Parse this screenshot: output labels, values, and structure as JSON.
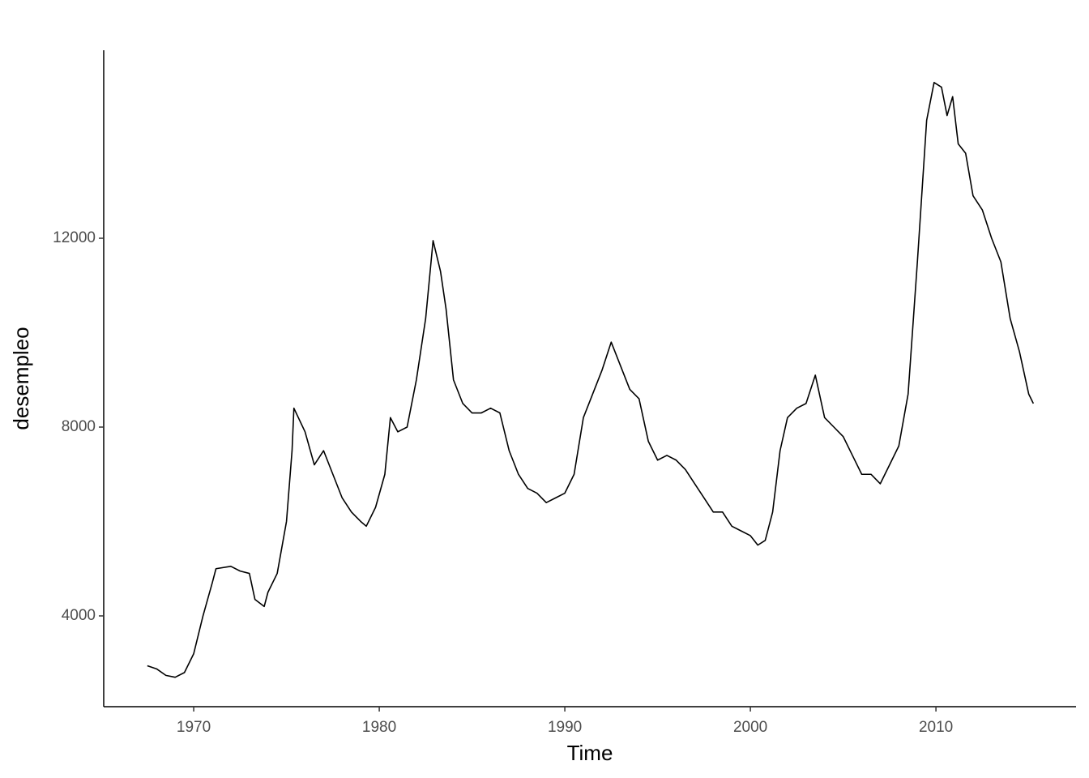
{
  "chart_data": {
    "type": "line",
    "x_label": "Time",
    "y_label": "desempleo",
    "x": [
      1967.5,
      1968.0,
      1968.5,
      1969.0,
      1969.5,
      1970.0,
      1970.5,
      1971.0,
      1971.2,
      1972.0,
      1972.5,
      1973.0,
      1973.3,
      1973.8,
      1974.0,
      1974.5,
      1975.0,
      1975.3,
      1975.4,
      1976.0,
      1976.5,
      1977.0,
      1977.5,
      1978.0,
      1978.5,
      1979.0,
      1979.3,
      1979.8,
      1980.3,
      1980.6,
      1981.0,
      1981.5,
      1982.0,
      1982.5,
      1982.9,
      1983.3,
      1983.6,
      1984.0,
      1984.5,
      1985.0,
      1985.5,
      1986.0,
      1986.5,
      1987.0,
      1987.5,
      1988.0,
      1988.5,
      1989.0,
      1989.5,
      1990.0,
      1990.5,
      1991.0,
      1991.5,
      1992.0,
      1992.5,
      1993.0,
      1993.5,
      1994.0,
      1994.5,
      1995.0,
      1995.5,
      1996.0,
      1996.5,
      1997.0,
      1997.5,
      1998.0,
      1998.5,
      1999.0,
      1999.5,
      2000.0,
      2000.4,
      2000.8,
      2001.2,
      2001.6,
      2002.0,
      2002.5,
      2003.0,
      2003.5,
      2004.0,
      2004.5,
      2005.0,
      2005.5,
      2006.0,
      2006.5,
      2007.0,
      2007.5,
      2008.0,
      2008.5,
      2009.0,
      2009.5,
      2009.9,
      2010.3,
      2010.6,
      2010.9,
      2011.2,
      2011.6,
      2012.0,
      2012.5,
      2013.0,
      2013.5,
      2014.0,
      2014.5,
      2015.0,
      2015.25
    ],
    "values": [
      2944,
      2878,
      2740,
      2700,
      2800,
      3200,
      4000,
      4700,
      5000,
      5050,
      4950,
      4900,
      4350,
      4200,
      4500,
      4900,
      6000,
      7500,
      8400,
      7900,
      7200,
      7500,
      7000,
      6500,
      6200,
      6000,
      5900,
      6300,
      7000,
      8200,
      7900,
      8000,
      9000,
      10300,
      11950,
      11300,
      10500,
      9000,
      8500,
      8300,
      8300,
      8400,
      8300,
      7500,
      7000,
      6700,
      6600,
      6400,
      6500,
      6600,
      7000,
      8200,
      8700,
      9200,
      9800,
      9300,
      8800,
      8600,
      7700,
      7300,
      7400,
      7300,
      7100,
      6800,
      6500,
      6200,
      6200,
      5900,
      5800,
      5700,
      5500,
      5600,
      6200,
      7500,
      8200,
      8400,
      8500,
      9100,
      8200,
      8000,
      7800,
      7400,
      7000,
      7000,
      6800,
      7200,
      7600,
      8700,
      11500,
      14500,
      15300,
      15200,
      14600,
      15000,
      14000,
      13800,
      12900,
      12600,
      12000,
      11500,
      10300,
      9600,
      8700,
      8500
    ],
    "color": "#000000",
    "xlim": [
      1965.15,
      2017.55
    ],
    "xticks": [
      1970,
      1980,
      1990,
      2000,
      2010
    ],
    "ylim": [
      2077,
      15983
    ],
    "yticks": [
      4000,
      8000,
      12000
    ],
    "grid": false
  }
}
